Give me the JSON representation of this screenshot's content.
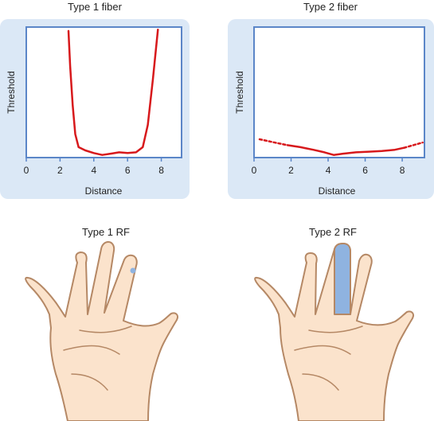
{
  "colors": {
    "panel": "#dbe8f6",
    "frame": "#5b86c8",
    "curve": "#d7191c",
    "skin": "#fbe3cc",
    "skin_outline": "#b58865",
    "receptive_field": "#8fb3e0"
  },
  "chart_data": [
    {
      "type": "line",
      "title": "Type 1 fiber",
      "xlabel": "Distance",
      "ylabel": "Threshold",
      "xticks": [
        "0",
        "2",
        "4",
        "6",
        "8"
      ],
      "xlim": [
        0,
        9.2
      ],
      "ylim": [
        0,
        10
      ],
      "series": [
        {
          "style": "solid",
          "x": [
            2.5,
            2.6,
            2.75,
            2.9,
            3.1,
            3.5,
            4.0,
            4.5,
            5.0,
            5.5,
            6.0,
            6.5,
            6.9,
            7.2,
            7.5,
            7.8
          ],
          "y": [
            9.7,
            7.0,
            4.0,
            1.8,
            0.8,
            0.55,
            0.35,
            0.2,
            0.3,
            0.4,
            0.35,
            0.4,
            0.8,
            2.5,
            6.0,
            9.8
          ]
        }
      ]
    },
    {
      "type": "line",
      "title": "Type 2 fiber",
      "xlabel": "Distance",
      "ylabel": "Threshold",
      "xticks": [
        "0",
        "2",
        "4",
        "6",
        "8"
      ],
      "xlim": [
        0,
        9.2
      ],
      "ylim": [
        0,
        10
      ],
      "series": [
        {
          "style": "dotted",
          "x": [
            0.3,
            0.8,
            1.3,
            1.8
          ],
          "y": [
            1.4,
            1.25,
            1.1,
            0.95
          ]
        },
        {
          "style": "solid",
          "x": [
            1.8,
            2.5,
            3.2,
            3.8,
            4.3,
            4.8,
            5.5,
            6.2,
            6.9,
            7.6,
            8.1
          ],
          "y": [
            0.95,
            0.8,
            0.6,
            0.4,
            0.2,
            0.3,
            0.4,
            0.45,
            0.5,
            0.6,
            0.75
          ]
        },
        {
          "style": "dotted",
          "x": [
            8.1,
            8.6,
            9.1
          ],
          "y": [
            0.75,
            0.95,
            1.15
          ]
        }
      ]
    }
  ],
  "hands": [
    {
      "label": "Type 1 RF",
      "receptive_field": "dot"
    },
    {
      "label": "Type 2 RF",
      "receptive_field": "finger"
    }
  ]
}
